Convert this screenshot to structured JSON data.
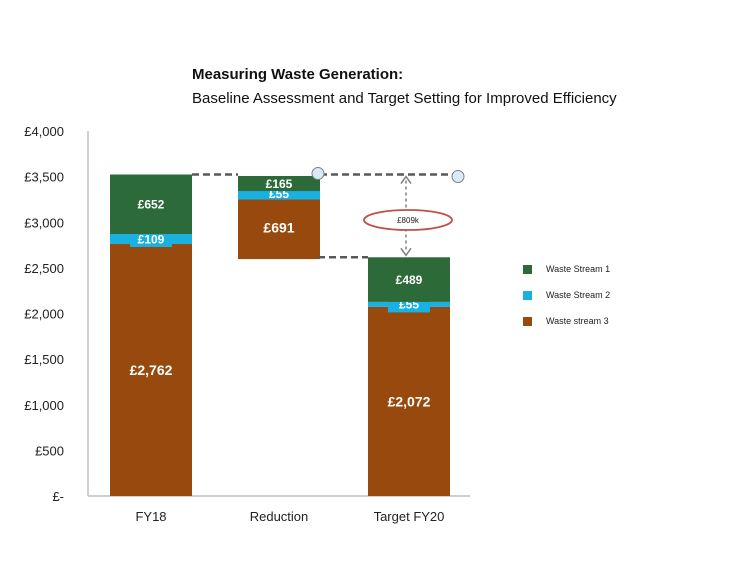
{
  "chart_data": {
    "type": "bar",
    "title": "Measuring Waste Generation:",
    "subtitle": "Baseline Assessment and Target Setting for Improved Efficiency",
    "categories": [
      "FY18",
      "Reduction",
      "Target FY20"
    ],
    "series": [
      {
        "name": "Waste stream 3",
        "values": [
          2762,
          691,
          2072
        ],
        "labels": [
          "£2,762",
          "£691",
          "£2,072"
        ]
      },
      {
        "name": "Waste Stream 2",
        "values": [
          109,
          55,
          55
        ],
        "labels": [
          "£109",
          "£55",
          "£55"
        ]
      },
      {
        "name": "Waste Stream 1",
        "values": [
          652,
          165,
          489
        ],
        "labels": [
          "£652",
          "£165",
          "£489"
        ]
      }
    ],
    "reduction_base": 2596,
    "annotation": "£809k",
    "ylim": [
      0,
      4000
    ],
    "yticks": [
      0,
      500,
      1000,
      1500,
      2000,
      2500,
      3000,
      3500,
      4000
    ],
    "ytick_labels": [
      "£-",
      "£500",
      "£1,000",
      "£1,500",
      "£2,000",
      "£2,500",
      "£3,000",
      "£3,500",
      "£4,000"
    ],
    "legend_position": "right",
    "colors": {
      "Waste Stream 1": "#2d6a3a",
      "Waste Stream 2": "#1ab0e0",
      "Waste stream 3": "#984a0e",
      "annotation_ring": "#c0504d"
    }
  },
  "legend": {
    "items": [
      {
        "label": "Waste Stream 1",
        "color": "#2d6a3a"
      },
      {
        "label": "Waste Stream 2",
        "color": "#1ab0e0"
      },
      {
        "label": "Waste stream 3",
        "color": "#984a0e"
      }
    ]
  }
}
